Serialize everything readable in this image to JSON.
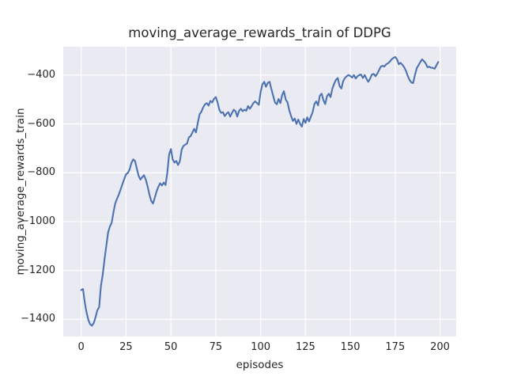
{
  "chart": {
    "title": "moving_average_rewards_train of DDPG",
    "xlabel": "episodes",
    "ylabel": "moving_average_rewards_train"
  },
  "chart_data": {
    "type": "line",
    "title": "moving_average_rewards_train of DDPG",
    "xlabel": "episodes",
    "ylabel": "moving_average_rewards_train",
    "grid": true,
    "legend": null,
    "xlim": [
      -10,
      209
    ],
    "ylim": [
      -1470,
      -284
    ],
    "xticks": [
      0,
      25,
      50,
      75,
      100,
      125,
      150,
      175,
      200
    ],
    "xtick_labels": [
      "0",
      "25",
      "50",
      "75",
      "100",
      "125",
      "150",
      "175",
      "200"
    ],
    "yticks": [
      -400,
      -600,
      -800,
      -1000,
      -1200,
      -1400
    ],
    "ytick_labels": [
      "−400",
      "−600",
      "−800",
      "−1000",
      "−1200",
      "−1400"
    ],
    "colors": {
      "line": "#4C72B0",
      "axes_background": "#EAEAF2",
      "grid": "#FFFFFF",
      "figure_background": "#FFFFFF",
      "text": "#262626"
    },
    "series": [
      {
        "name": "moving_average_rewards_train",
        "x_start": 0,
        "x_step": 1,
        "values": [
          -1280,
          -1276,
          -1330,
          -1372,
          -1403,
          -1420,
          -1426,
          -1415,
          -1392,
          -1363,
          -1350,
          -1262,
          -1218,
          -1155,
          -1098,
          -1045,
          -1020,
          -1004,
          -962,
          -925,
          -906,
          -888,
          -868,
          -846,
          -825,
          -806,
          -801,
          -786,
          -760,
          -745,
          -752,
          -782,
          -812,
          -828,
          -818,
          -810,
          -828,
          -856,
          -888,
          -915,
          -926,
          -903,
          -877,
          -857,
          -843,
          -852,
          -840,
          -850,
          -800,
          -725,
          -703,
          -745,
          -758,
          -752,
          -768,
          -753,
          -705,
          -690,
          -685,
          -680,
          -655,
          -650,
          -635,
          -620,
          -635,
          -595,
          -560,
          -550,
          -532,
          -520,
          -515,
          -525,
          -506,
          -512,
          -498,
          -490,
          -512,
          -542,
          -555,
          -552,
          -568,
          -558,
          -552,
          -570,
          -556,
          -542,
          -548,
          -570,
          -546,
          -538,
          -548,
          -542,
          -546,
          -527,
          -538,
          -527,
          -514,
          -508,
          -515,
          -522,
          -470,
          -438,
          -428,
          -448,
          -432,
          -428,
          -458,
          -485,
          -512,
          -520,
          -498,
          -515,
          -482,
          -466,
          -500,
          -512,
          -545,
          -568,
          -588,
          -578,
          -600,
          -582,
          -600,
          -611,
          -580,
          -596,
          -573,
          -590,
          -570,
          -552,
          -519,
          -508,
          -524,
          -485,
          -476,
          -503,
          -519,
          -487,
          -476,
          -490,
          -455,
          -435,
          -420,
          -412,
          -445,
          -455,
          -425,
          -412,
          -405,
          -400,
          -404,
          -410,
          -400,
          -414,
          -405,
          -400,
          -398,
          -412,
          -400,
          -415,
          -428,
          -415,
          -398,
          -395,
          -405,
          -395,
          -380,
          -365,
          -362,
          -365,
          -356,
          -352,
          -345,
          -336,
          -330,
          -326,
          -335,
          -356,
          -350,
          -358,
          -368,
          -383,
          -403,
          -420,
          -430,
          -433,
          -400,
          -372,
          -360,
          -347,
          -336,
          -343,
          -352,
          -368,
          -366,
          -370,
          -371,
          -374,
          -360,
          -347
        ]
      }
    ]
  }
}
